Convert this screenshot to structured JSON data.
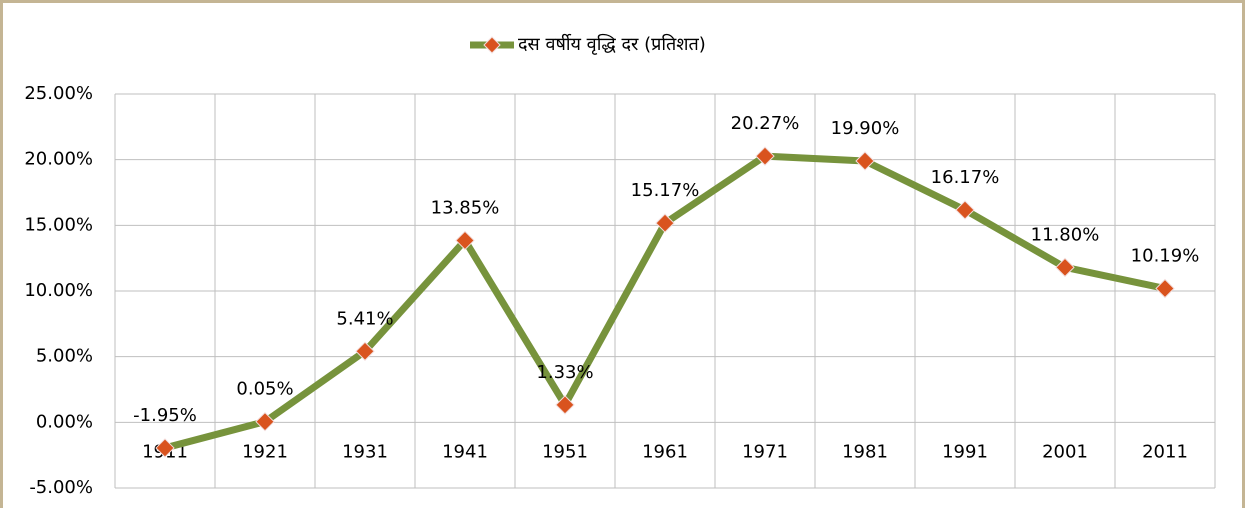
{
  "chart_data": {
    "type": "line",
    "categories": [
      "1911",
      "1921",
      "1931",
      "1941",
      "1951",
      "1961",
      "1971",
      "1981",
      "1991",
      "2001",
      "2011"
    ],
    "series": [
      {
        "name": "दस वर्षीय वृद्धि दर (प्रतिशत)",
        "color": "#77933c",
        "marker_color": "#d9531e",
        "values": [
          -1.95,
          0.05,
          5.41,
          13.85,
          1.33,
          15.17,
          20.27,
          19.9,
          16.17,
          11.8,
          10.19
        ],
        "value_labels": [
          "-1.95%",
          "0.05%",
          "5.41%",
          "13.85%",
          "1.33%",
          "15.17%",
          "20.27%",
          "19.90%",
          "16.17%",
          "11.80%",
          "10.19%"
        ]
      }
    ],
    "ylim": [
      -5,
      25
    ],
    "yticks": [
      {
        "value": -5,
        "label": "-5.00%"
      },
      {
        "value": 0,
        "label": "0.00%"
      },
      {
        "value": 5,
        "label": "5.00%"
      },
      {
        "value": 10,
        "label": "10.00%"
      },
      {
        "value": 15,
        "label": "15.00%"
      },
      {
        "value": 20,
        "label": "20.00%"
      },
      {
        "value": 25,
        "label": "25.00%"
      }
    ],
    "grid": true,
    "legend": "top"
  }
}
